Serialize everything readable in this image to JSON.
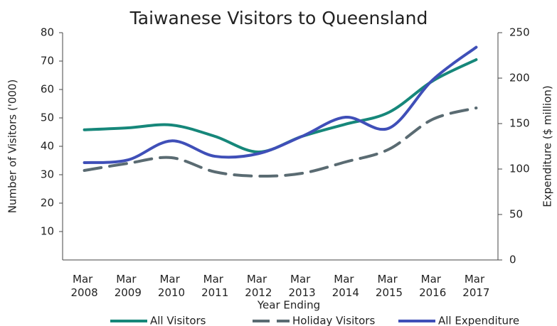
{
  "chart_data": {
    "type": "line",
    "title": "Taiwanese Visitors to Queensland",
    "x_label": "Year Ending",
    "y_label": "Number of Visitors ('000)",
    "y2_label": "Expenditure ($ million)",
    "categories": [
      "Mar 2008",
      "Mar 2009",
      "Mar 2010",
      "Mar 2011",
      "Mar 2012",
      "Mar 2013",
      "Mar 2014",
      "Mar 2015",
      "Mar 2016",
      "Mar 2017"
    ],
    "ylim": [
      0,
      80
    ],
    "yticks": [
      10,
      20,
      30,
      40,
      50,
      60,
      70,
      80
    ],
    "y2lim": [
      0,
      250
    ],
    "y2ticks": [
      0,
      50,
      100,
      150,
      200,
      250
    ],
    "legend": "bottom",
    "series": [
      {
        "name": "All Visitors",
        "color": "#16877a",
        "dash": false,
        "values": [
          45.8,
          46.5,
          47.5,
          43.5,
          38,
          43.5,
          47.8,
          52,
          63,
          70.5
        ]
      },
      {
        "name": "Holiday Visitors",
        "color": "#5a6b72",
        "dash": true,
        "values": [
          31.5,
          34,
          36,
          31,
          29.5,
          30.5,
          34.5,
          39,
          49.5,
          53.5
        ]
      },
      {
        "name": "All Expenditure",
        "color": "#3f4fb8",
        "dash": false,
        "axis": "y2",
        "values": [
          107,
          110,
          131,
          114,
          117,
          136,
          157,
          145,
          198,
          234
        ]
      }
    ]
  }
}
